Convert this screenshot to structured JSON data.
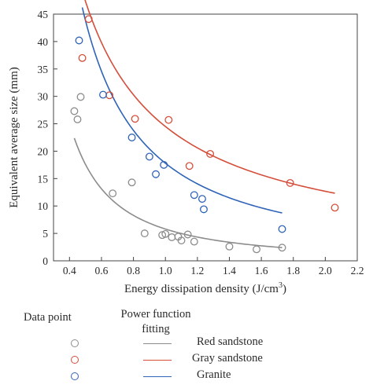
{
  "chart_data": {
    "type": "scatter",
    "xlabel": "Energy dissipation density (J/cm",
    "xlabel_sup": "3",
    "xlabel_suffix": ")",
    "ylabel": "Equivalent average size (mm)",
    "xlim": [
      0.3,
      2.2
    ],
    "ylim": [
      0,
      45
    ],
    "xticks": [
      "0.4",
      "0.6",
      "0.8",
      "1.0",
      "1.2",
      "1.4",
      "1.6",
      "1.8",
      "2.0",
      "2.2"
    ],
    "yticks": [
      "0",
      "5",
      "10",
      "15",
      "20",
      "25",
      "30",
      "35",
      "40",
      "45"
    ],
    "series": [
      {
        "name": "Red sandstone",
        "color": "#8c8c8c",
        "points": [
          [
            0.43,
            27.3
          ],
          [
            0.45,
            25.8
          ],
          [
            0.47,
            29.9
          ],
          [
            0.67,
            12.3
          ],
          [
            0.79,
            14.3
          ],
          [
            0.87,
            5.0
          ],
          [
            0.98,
            4.7
          ],
          [
            1.0,
            4.9
          ],
          [
            1.04,
            4.3
          ],
          [
            1.08,
            4.4
          ],
          [
            1.1,
            3.7
          ],
          [
            1.14,
            4.8
          ],
          [
            1.18,
            3.5
          ],
          [
            1.4,
            2.6
          ],
          [
            1.57,
            2.1
          ],
          [
            1.73,
            2.4
          ]
        ],
        "fit": {
          "a": 5.8,
          "b": -1.6,
          "x_range": [
            0.43,
            1.73
          ]
        }
      },
      {
        "name": "Gray sandstone",
        "color": "#d44e3a",
        "points": [
          [
            0.48,
            37.0
          ],
          [
            0.52,
            44.1
          ],
          [
            0.65,
            30.2
          ],
          [
            0.81,
            25.9
          ],
          [
            1.02,
            25.7
          ],
          [
            1.15,
            17.3
          ],
          [
            1.28,
            19.5
          ],
          [
            1.78,
            14.2
          ],
          [
            2.06,
            9.7
          ]
        ],
        "fit": {
          "a": 24.5,
          "b": -0.95,
          "x_range": [
            0.48,
            2.06
          ]
        }
      },
      {
        "name": "Granite",
        "color": "#2f63b8",
        "points": [
          [
            0.46,
            40.2
          ],
          [
            0.61,
            30.3
          ],
          [
            0.79,
            22.5
          ],
          [
            0.9,
            19.0
          ],
          [
            0.94,
            15.8
          ],
          [
            0.99,
            17.5
          ],
          [
            1.18,
            12.0
          ],
          [
            1.23,
            11.3
          ],
          [
            1.24,
            9.4
          ],
          [
            1.73,
            5.8
          ]
        ],
        "fit": {
          "a": 17.8,
          "b": -1.3,
          "x_range": [
            0.48,
            1.73
          ]
        }
      }
    ]
  },
  "legend": {
    "header_point": "Data point",
    "header_fit_line1": "Power function",
    "header_fit_line2": "fitting",
    "items": [
      {
        "label": "Red sandstone",
        "color": "#8c8c8c"
      },
      {
        "label": "Gray sandstone",
        "color": "#d44e3a"
      },
      {
        "label": "Granite",
        "color": "#2f63b8"
      }
    ]
  }
}
